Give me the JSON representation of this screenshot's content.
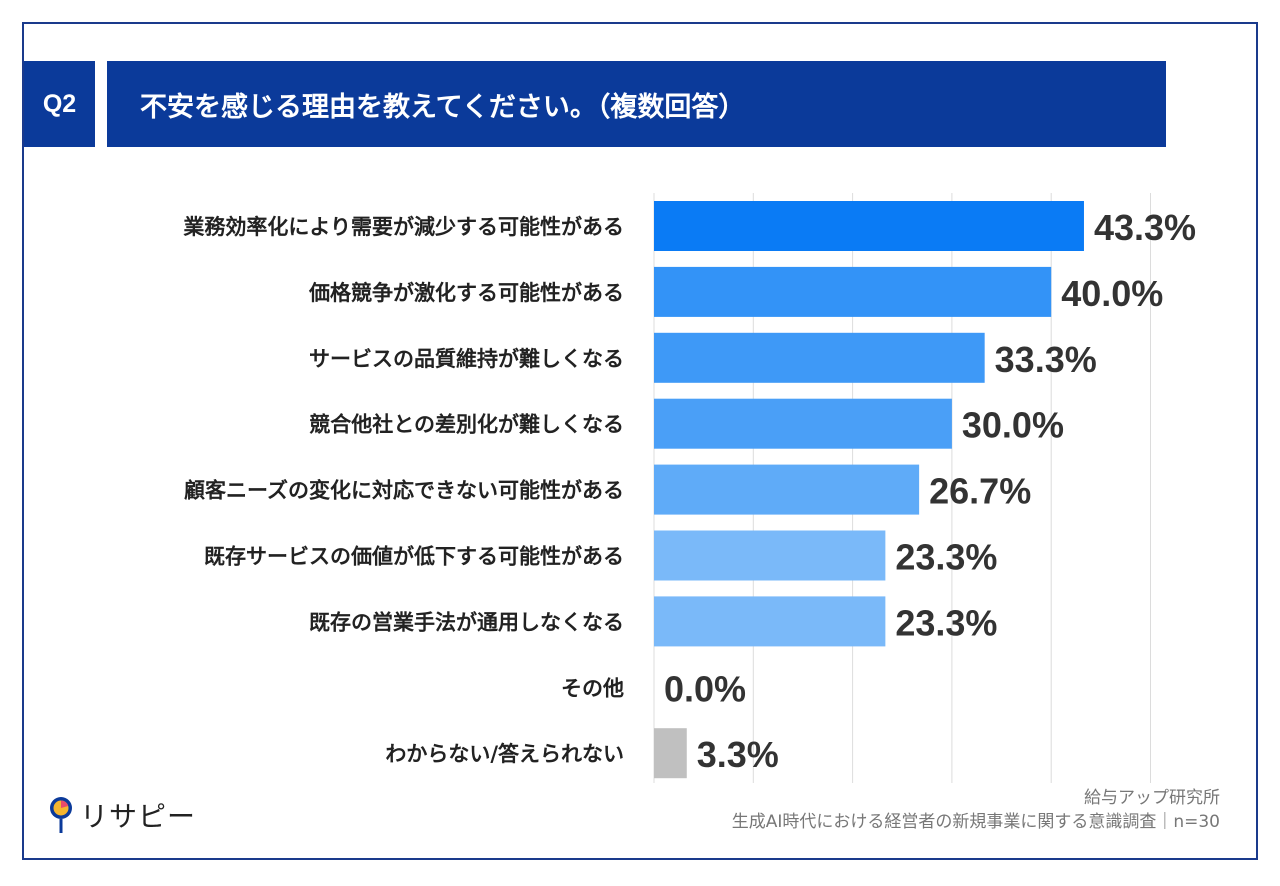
{
  "question": {
    "badge": "Q2",
    "title": "不安を感じる理由を教えてください。（複数回答）"
  },
  "chart_data": {
    "type": "bar",
    "orientation": "horizontal",
    "categories": [
      "業務効率化により需要が減少する可能性がある",
      "価格競争が激化する可能性がある",
      "サービスの品質維持が難しくなる",
      "競合他社との差別化が難しくなる",
      "顧客ニーズの変化に対応できない可能性がある",
      "既存サービスの価値が低下する可能性がある",
      "既存の営業手法が通用しなくなる",
      "その他",
      "わからない/答えられない"
    ],
    "values": [
      43.3,
      40.0,
      33.3,
      30.0,
      26.7,
      23.3,
      23.3,
      0.0,
      3.3
    ],
    "value_labels": [
      "43.3%",
      "40.0%",
      "33.3%",
      "30.0%",
      "26.7%",
      "23.3%",
      "23.3%",
      "0.0%",
      "3.3%"
    ],
    "colors": [
      "#0a7bf5",
      "#3393f7",
      "#3e99f7",
      "#4a9ff7",
      "#5fabf8",
      "#7ab9f9",
      "#7ab9f9",
      "#7ab9f9",
      "#c0c0c0"
    ],
    "xlim": [
      0,
      50
    ],
    "grid": true
  },
  "logo": {
    "text": "リサピー"
  },
  "source": {
    "line1": "給与アップ研究所",
    "line2": "生成AI時代における経営者の新規事業に関する意識調査｜n=30"
  }
}
